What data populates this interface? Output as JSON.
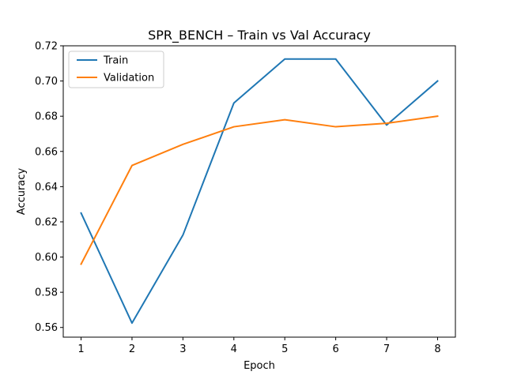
{
  "chart_data": {
    "type": "line",
    "title": "SPR_BENCH – Train vs Val Accuracy",
    "xlabel": "Epoch",
    "ylabel": "Accuracy",
    "x": [
      1,
      2,
      3,
      4,
      5,
      6,
      7,
      8
    ],
    "xlim": [
      0.65,
      8.35
    ],
    "ylim": [
      0.5545,
      0.72
    ],
    "xticks": [
      "1",
      "2",
      "3",
      "4",
      "5",
      "6",
      "7",
      "8"
    ],
    "yticks": [
      "0.56",
      "0.58",
      "0.60",
      "0.62",
      "0.64",
      "0.66",
      "0.68",
      "0.70",
      "0.72"
    ],
    "grid": false,
    "legend_position": "top-left",
    "series": [
      {
        "name": "Train",
        "color": "#1f77b4",
        "values": [
          0.625,
          0.5625,
          0.6125,
          0.6875,
          0.7125,
          0.7125,
          0.675,
          0.7
        ]
      },
      {
        "name": "Validation",
        "color": "#ff7f0e",
        "values": [
          0.596,
          0.652,
          0.664,
          0.674,
          0.678,
          0.674,
          0.676,
          0.68
        ]
      }
    ]
  }
}
